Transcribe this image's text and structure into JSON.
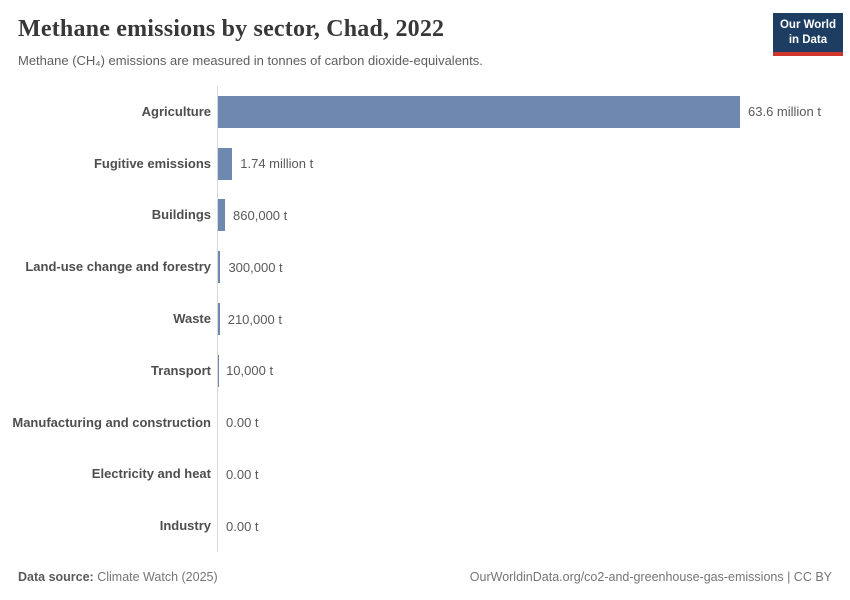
{
  "header": {
    "title": "Methane emissions by sector, Chad, 2022",
    "subtitle": "Methane (CH₄) emissions are measured in tonnes of carbon dioxide-equivalents.",
    "logo": {
      "line1": "Our World",
      "line2": "in Data"
    }
  },
  "chart_data": {
    "type": "bar",
    "orientation": "horizontal",
    "title": "Methane emissions by sector, Chad, 2022",
    "subtitle": "Methane (CH₄) emissions are measured in tonnes of carbon dioxide-equivalents.",
    "unit": "tonnes of CO₂-equivalents",
    "xlim": [
      0,
      63600000
    ],
    "grid": false,
    "legend": "none",
    "bar_color": "#6f88af",
    "axis_line_color": "#d9d9d9",
    "categories": [
      "Agriculture",
      "Fugitive emissions",
      "Buildings",
      "Land-use change and forestry",
      "Waste",
      "Transport",
      "Manufacturing and construction",
      "Electricity and heat",
      "Industry"
    ],
    "values": [
      63600000,
      1740000,
      860000,
      300000,
      210000,
      10000,
      0,
      0,
      0
    ],
    "value_labels": [
      "63.6 million t",
      "1.74 million t",
      "860,000 t",
      "300,000 t",
      "210,000 t",
      "10,000 t",
      "0.00 t",
      "0.00 t",
      "0.00 t"
    ]
  },
  "footer": {
    "datasource_label": "Data source:",
    "datasource_value": "Climate Watch (2025)",
    "link": "OurWorldinData.org/co2-and-greenhouse-gas-emissions | CC BY"
  }
}
